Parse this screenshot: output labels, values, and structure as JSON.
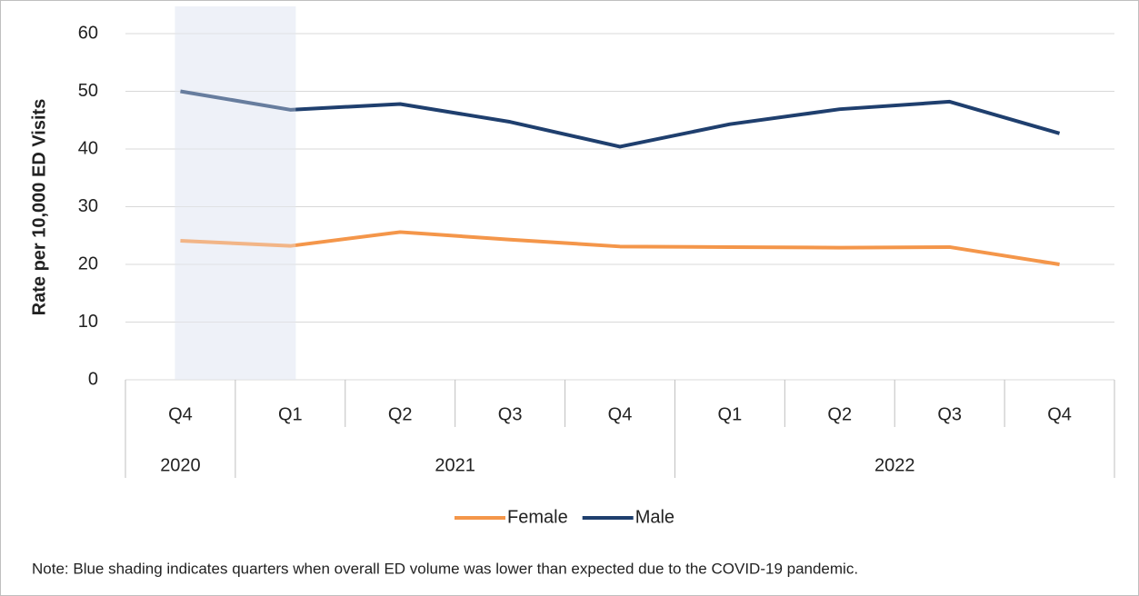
{
  "chart_data": {
    "type": "line",
    "y_label": "Rate per 10,000 ED Visits",
    "categories": [
      "Q4",
      "Q1",
      "Q2",
      "Q3",
      "Q4",
      "Q1",
      "Q2",
      "Q3",
      "Q4"
    ],
    "groups": [
      {
        "label": "2020",
        "span": 1
      },
      {
        "label": "2021",
        "span": 4
      },
      {
        "label": "2022",
        "span": 4
      }
    ],
    "series": [
      {
        "name": "Female",
        "color": "#f4964a",
        "values": [
          24.1,
          23.2,
          25.6,
          24.3,
          23.1,
          23.0,
          22.9,
          23.0,
          20.0
        ]
      },
      {
        "name": "Male",
        "color": "#1f3f6e",
        "values": [
          50.0,
          46.8,
          47.8,
          44.7,
          40.4,
          44.3,
          46.9,
          48.2,
          42.7
        ]
      }
    ],
    "ylim": [
      0,
      60
    ],
    "yticks": [
      0,
      10,
      20,
      30,
      40,
      50,
      60
    ],
    "grid": true,
    "shading": {
      "from": 0,
      "to": 1,
      "color": "#eef2f8"
    },
    "legend": "bottom",
    "note": "Note: Blue shading indicates quarters when overall ED volume was lower than expected due to the COVID-19 pandemic."
  }
}
